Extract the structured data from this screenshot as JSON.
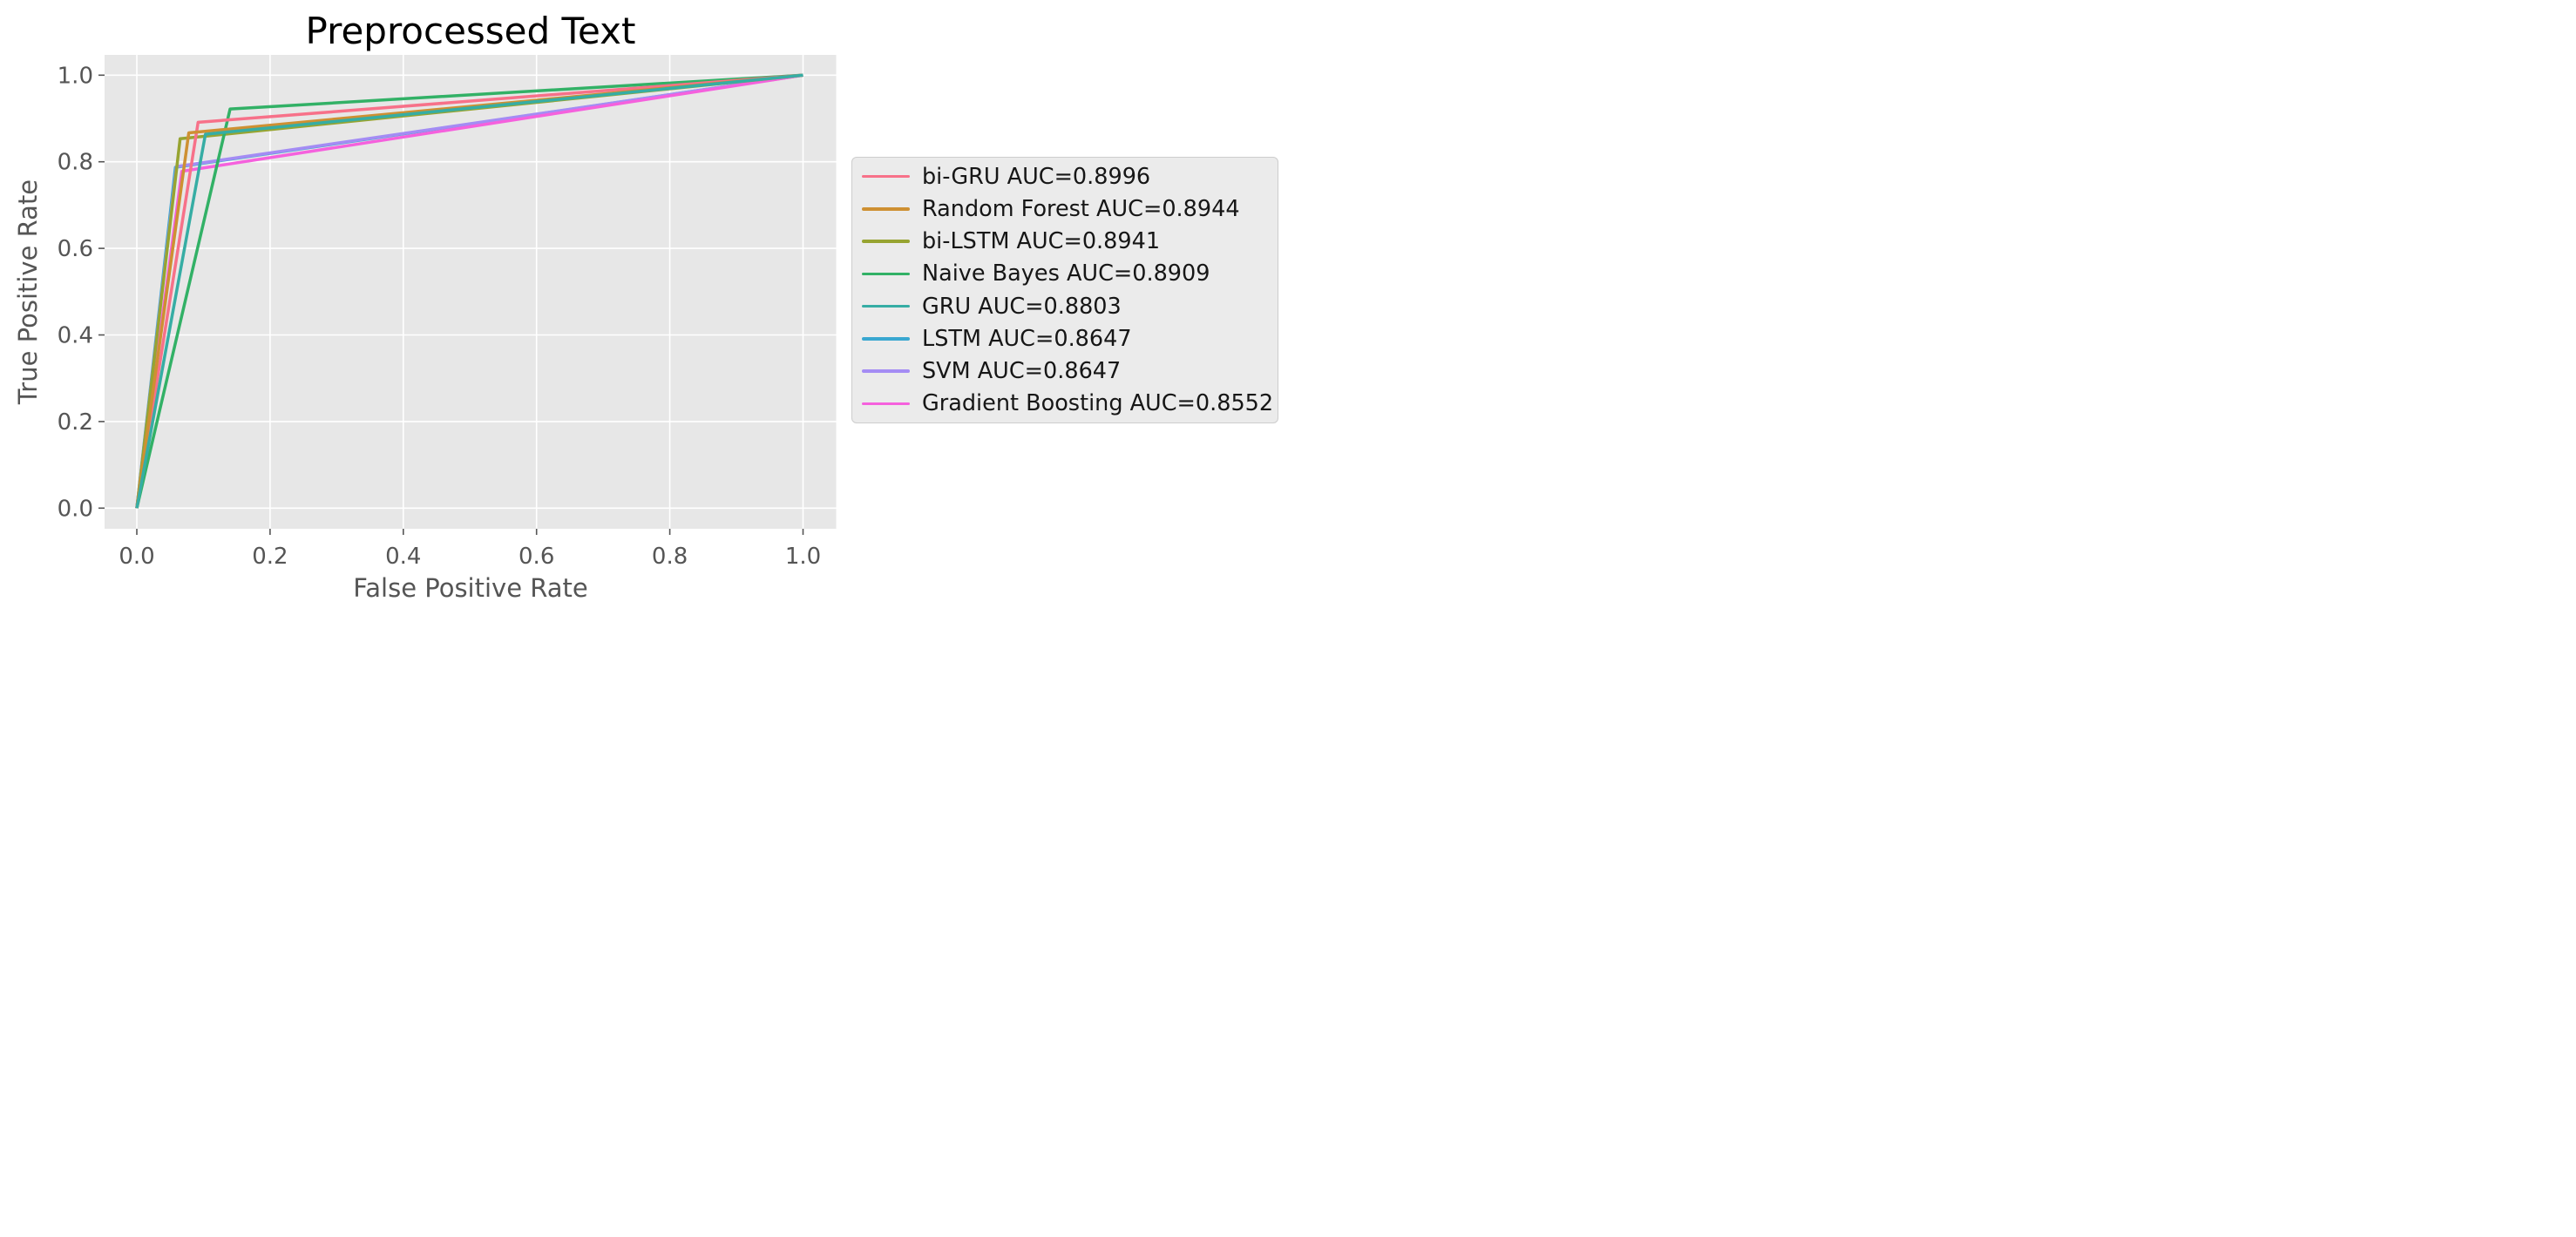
{
  "chart_data": {
    "type": "line",
    "title": "Preprocessed Text",
    "xlabel": "False Positive Rate",
    "ylabel": "True Positive Rate",
    "xlim": [
      -0.05,
      1.05
    ],
    "ylim": [
      -0.05,
      1.05
    ],
    "grid": true,
    "legend_position": "center-right-outside",
    "xticks": {
      "values": [
        0.0,
        0.2,
        0.4,
        0.6,
        0.8,
        1.0
      ],
      "labels": [
        "0.0",
        "0.2",
        "0.4",
        "0.6",
        "0.8",
        "1.0"
      ]
    },
    "yticks": {
      "values": [
        0.0,
        0.2,
        0.4,
        0.6,
        0.8,
        1.0
      ],
      "labels": [
        "0.0",
        "0.2",
        "0.4",
        "0.6",
        "0.8",
        "1.0"
      ]
    },
    "style": {
      "axes_background": "#e7e7e7",
      "grid_color": "#ffffff",
      "tick_color": "#555555",
      "label_color": "#555555",
      "title_color": "#000000",
      "legend_background": "#ebebeb",
      "legend_border": "#cdcdcd",
      "line_width": 3.5
    },
    "series": [
      {
        "name": "bi-GRU",
        "auc": 0.8996,
        "legend_label": "bi-GRU AUC=0.8996",
        "color": "#f77189",
        "points": [
          [
            0.0,
            0.0
          ],
          [
            0.092,
            0.8912
          ],
          [
            1.0,
            1.0
          ]
        ]
      },
      {
        "name": "Random Forest",
        "auc": 0.8944,
        "legend_label": "Random Forest AUC=0.8944",
        "color": "#ce9032",
        "points": [
          [
            0.0,
            0.0
          ],
          [
            0.078,
            0.8668
          ],
          [
            1.0,
            1.0
          ]
        ]
      },
      {
        "name": "bi-LSTM",
        "auc": 0.8941,
        "legend_label": "bi-LSTM AUC=0.8941",
        "color": "#97a431",
        "points": [
          [
            0.0,
            0.0
          ],
          [
            0.065,
            0.8532
          ],
          [
            1.0,
            1.0
          ]
        ]
      },
      {
        "name": "Naive Bayes",
        "auc": 0.8909,
        "legend_label": "Naive Bayes AUC=0.8909",
        "color": "#32b166",
        "points": [
          [
            0.0,
            0.0
          ],
          [
            0.14,
            0.9218
          ],
          [
            1.0,
            1.0
          ]
        ]
      },
      {
        "name": "GRU",
        "auc": 0.8803,
        "legend_label": "GRU AUC=0.8803",
        "color": "#36ada4",
        "points": [
          [
            0.0,
            0.0
          ],
          [
            0.103,
            0.8636
          ],
          [
            1.0,
            1.0
          ]
        ]
      },
      {
        "name": "LSTM",
        "auc": 0.8647,
        "legend_label": "LSTM AUC=0.8647",
        "color": "#39a7d0",
        "points": [
          [
            0.0,
            0.0
          ],
          [
            0.058,
            0.7874
          ],
          [
            1.0,
            1.0
          ]
        ]
      },
      {
        "name": "SVM",
        "auc": 0.8647,
        "legend_label": "SVM AUC=0.8647",
        "color": "#a48cf4",
        "points": [
          [
            0.0,
            0.0
          ],
          [
            0.0595,
            0.7889
          ],
          [
            1.0,
            1.0
          ]
        ]
      },
      {
        "name": "Gradient Boosting",
        "auc": 0.8552,
        "legend_label": "Gradient Boosting AUC=0.8552",
        "color": "#f561dd",
        "points": [
          [
            0.0,
            0.0
          ],
          [
            0.0676,
            0.778
          ],
          [
            1.0,
            1.0
          ]
        ]
      }
    ],
    "draw_order": [
      "LSTM",
      "SVM",
      "Gradient Boosting",
      "bi-LSTM",
      "Naive Bayes",
      "bi-GRU",
      "Random Forest",
      "GRU"
    ]
  }
}
